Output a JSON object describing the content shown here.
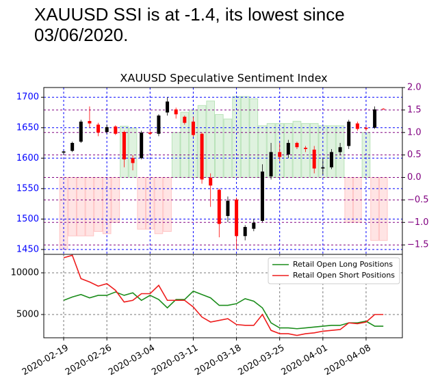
{
  "headline": "XAUUSD SSI is at -1.4, its lowest since\n03/06/2020.",
  "chart_data": [
    {
      "type": "candlestick",
      "title": "XAUUSD Speculative Sentiment Index",
      "open": [
        1609,
        1612,
        1627,
        1661,
        1655,
        1643,
        1652,
        1643,
        1600,
        1600,
        1642,
        1640,
        1675,
        1680,
        1668,
        1660,
        1640,
        1568,
        1548,
        1505,
        1532,
        1472,
        1484,
        1497,
        1570,
        1610,
        1606,
        1625,
        1617,
        1614,
        1583,
        1585,
        1610,
        1620,
        1657,
        1650,
        1650,
        1681
      ],
      "high": [
        1612,
        1627,
        1663,
        1685,
        1658,
        1655,
        1654,
        1645,
        1605,
        1645,
        1645,
        1672,
        1700,
        1683,
        1670,
        1668,
        1642,
        1575,
        1550,
        1537,
        1535,
        1490,
        1500,
        1590,
        1625,
        1625,
        1630,
        1627,
        1620,
        1620,
        1600,
        1615,
        1625,
        1663,
        1660,
        1652,
        1685,
        1682
      ],
      "low": [
        1605,
        1610,
        1625,
        1650,
        1636,
        1640,
        1638,
        1585,
        1580,
        1598,
        1638,
        1636,
        1670,
        1665,
        1655,
        1635,
        1558,
        1520,
        1470,
        1495,
        1450,
        1465,
        1480,
        1495,
        1565,
        1595,
        1600,
        1615,
        1610,
        1575,
        1573,
        1582,
        1605,
        1615,
        1645,
        1645,
        1648,
        1680
      ],
      "close": [
        1611,
        1625,
        1660,
        1657,
        1642,
        1651,
        1640,
        1598,
        1592,
        1642,
        1640,
        1670,
        1693,
        1672,
        1658,
        1638,
        1565,
        1555,
        1492,
        1530,
        1472,
        1487,
        1494,
        1578,
        1610,
        1602,
        1625,
        1618,
        1615,
        1583,
        1585,
        1610,
        1618,
        1660,
        1648,
        1648,
        1680,
        1680
      ],
      "up_color": "#000000",
      "down_color": "#ff0000",
      "ylim": [
        1442,
        1716
      ],
      "yticks": [
        1450,
        1500,
        1550,
        1600,
        1650,
        1700
      ],
      "ytick_color": "#0000ff",
      "bar_values": [
        -1.6,
        -1.3,
        -1.3,
        -1.3,
        -1.2,
        -1.25,
        -1.0,
        1.14,
        1.1,
        -1.15,
        -1.15,
        -1.25,
        -1.2,
        1.0,
        1.45,
        1.5,
        1.6,
        1.7,
        1.4,
        1.3,
        1.8,
        1.8,
        1.75,
        1.15,
        1.2,
        1.2,
        1.2,
        1.25,
        1.2,
        1.2,
        1.15,
        1.15,
        1.15,
        -1.0,
        -1.0,
        1.0,
        -1.4,
        -1.4
      ],
      "bar_axis": "y2",
      "bar_positive_color": "#b9e3b9",
      "bar_negative_color": "#ffc4c4",
      "y2lim": [
        -1.71,
        2.0
      ],
      "y2ticks": [
        {
          "value": 2.0,
          "label": "2.0"
        },
        1.5,
        {
          "value": 1.0,
          "label": "1.0"
        },
        0.5,
        {
          "value": 0.0,
          "label": "0.0"
        },
        {
          "value": -0.5,
          "label": "−0.5"
        },
        {
          "value": -1.0,
          "label": "−1.0"
        },
        {
          "value": -1.5,
          "label": "−1.5"
        }
      ],
      "y2tick_color": "#800080",
      "grid": true
    },
    {
      "type": "line",
      "categories": [
        "2020-02-19",
        null,
        null,
        null,
        null,
        "2020-02-26",
        null,
        null,
        null,
        null,
        "2020-03-04",
        null,
        null,
        null,
        null,
        "2020-03-11",
        null,
        null,
        null,
        null,
        "2020-03-18",
        null,
        null,
        null,
        null,
        "2020-03-25",
        null,
        null,
        null,
        null,
        "2020-04-01",
        null,
        null,
        null,
        null,
        "2020-04-08",
        null,
        null
      ],
      "series": [
        {
          "name": "Retail Open Long Positions",
          "color": "#1a8c1a",
          "values": [
            6700,
            7100,
            7400,
            7000,
            7300,
            7300,
            7700,
            7300,
            7600,
            6700,
            7300,
            6800,
            5800,
            6800,
            6800,
            7800,
            7400,
            7000,
            6100,
            6100,
            6300,
            6900,
            6600,
            5800,
            4000,
            3400,
            3400,
            3300,
            3400,
            3500,
            3600,
            3700,
            3700,
            4000,
            4000,
            4200,
            3600,
            3600
          ]
        },
        {
          "name": "Retail Open Short Positions",
          "color": "#ee1c1c",
          "values": [
            11800,
            12100,
            9300,
            8900,
            8400,
            8700,
            7900,
            6500,
            6700,
            7500,
            7500,
            8500,
            6700,
            6700,
            6700,
            5900,
            4700,
            4100,
            4300,
            4500,
            3800,
            3700,
            3700,
            5000,
            3100,
            2700,
            2700,
            2500,
            2700,
            2800,
            3000,
            3100,
            3200,
            4000,
            3900,
            4100,
            5000,
            5000
          ]
        }
      ],
      "ylim": [
        2213,
        12213
      ],
      "yticks": [
        5000,
        10000
      ],
      "grid": true,
      "legend": "upper right"
    }
  ]
}
